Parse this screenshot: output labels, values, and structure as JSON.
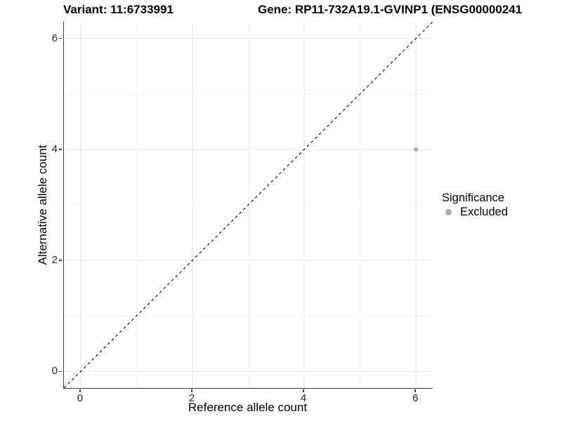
{
  "header": {
    "variant_title": "Variant: 11:6733991",
    "gene_title": "Gene: RP11-732A19.1-GVINP1 (ENSG00000241"
  },
  "chart_data": {
    "type": "scatter",
    "xlabel": "Reference allele count",
    "ylabel": "Alternative allele count",
    "xlim": [
      -0.3,
      6.3
    ],
    "ylim": [
      -0.3,
      6.3
    ],
    "x_ticks": [
      0,
      2,
      4,
      6
    ],
    "y_ticks": [
      0,
      2,
      4,
      6
    ],
    "x_minor_ticks": [
      1,
      3,
      5
    ],
    "y_minor_ticks": [
      1,
      3,
      5
    ],
    "grid": true,
    "reference_line": {
      "type": "identity",
      "slope": 1,
      "intercept": 0,
      "linetype": "dashed",
      "color": "#000000"
    },
    "series": [
      {
        "name": "Excluded",
        "color": "#ababab",
        "points": [
          {
            "x": 6,
            "y": 4
          }
        ]
      }
    ],
    "legend": {
      "title": "Significance",
      "position": "right",
      "items": [
        {
          "label": "Excluded",
          "color": "#ababab"
        }
      ]
    },
    "colors": {
      "point": "#ababab",
      "axis_line": "#3f3f3f",
      "grid_major": "#e3e3e3",
      "grid_minor": "#efefef",
      "identity_line": "#000000",
      "tick_label": "#262626"
    }
  }
}
